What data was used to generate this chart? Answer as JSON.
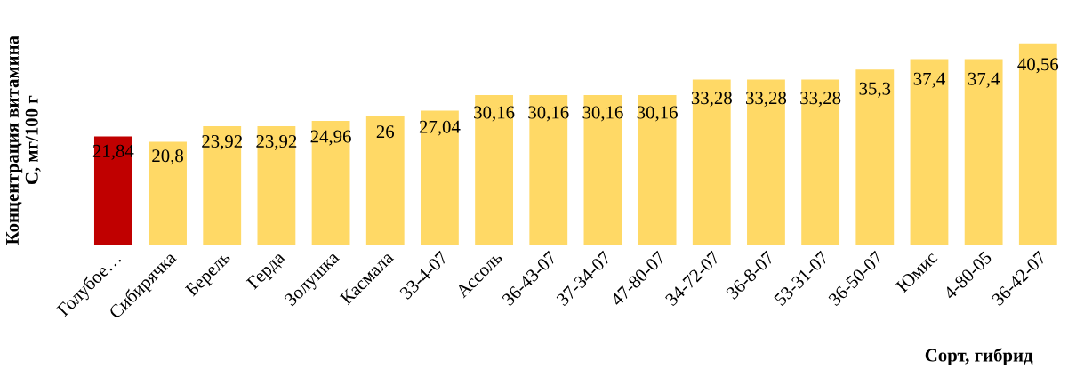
{
  "chart_data": {
    "type": "bar",
    "xlabel": "Сорт, гибрид",
    "ylabel": "Концентрация витамина\nС, мг/100 г",
    "categories": [
      "Голубое…",
      "Сибирячка",
      "Берель",
      "Герда",
      "Золушка",
      "Касмала",
      "33-4-07",
      "Ассоль",
      "36-43-07",
      "37-34-07",
      "47-80-07",
      "34-72-07",
      "36-8-07",
      "53-31-07",
      "36-50-07",
      "Юмис",
      "4-80-05",
      "36-42-07"
    ],
    "values": [
      21.84,
      20.8,
      23.92,
      23.92,
      24.96,
      26,
      27.04,
      30.16,
      30.16,
      30.16,
      30.16,
      33.28,
      33.28,
      33.28,
      35.3,
      37.4,
      37.4,
      40.56
    ],
    "value_labels": [
      "21,84",
      "20,8",
      "23,92",
      "23,92",
      "24,96",
      "26",
      "27,04",
      "30,16",
      "30,16",
      "30,16",
      "30,16",
      "33,28",
      "33,28",
      "33,28",
      "35,3",
      "37,4",
      "37,4",
      "40,56"
    ],
    "colors": [
      "#c00000",
      "#ffd966",
      "#ffd966",
      "#ffd966",
      "#ffd966",
      "#ffd966",
      "#ffd966",
      "#ffd966",
      "#ffd966",
      "#ffd966",
      "#ffd966",
      "#ffd966",
      "#ffd966",
      "#ffd966",
      "#ffd966",
      "#ffd966",
      "#ffd966",
      "#ffd966"
    ],
    "tick_labels": "x",
    "grid": false,
    "legend": false
  }
}
